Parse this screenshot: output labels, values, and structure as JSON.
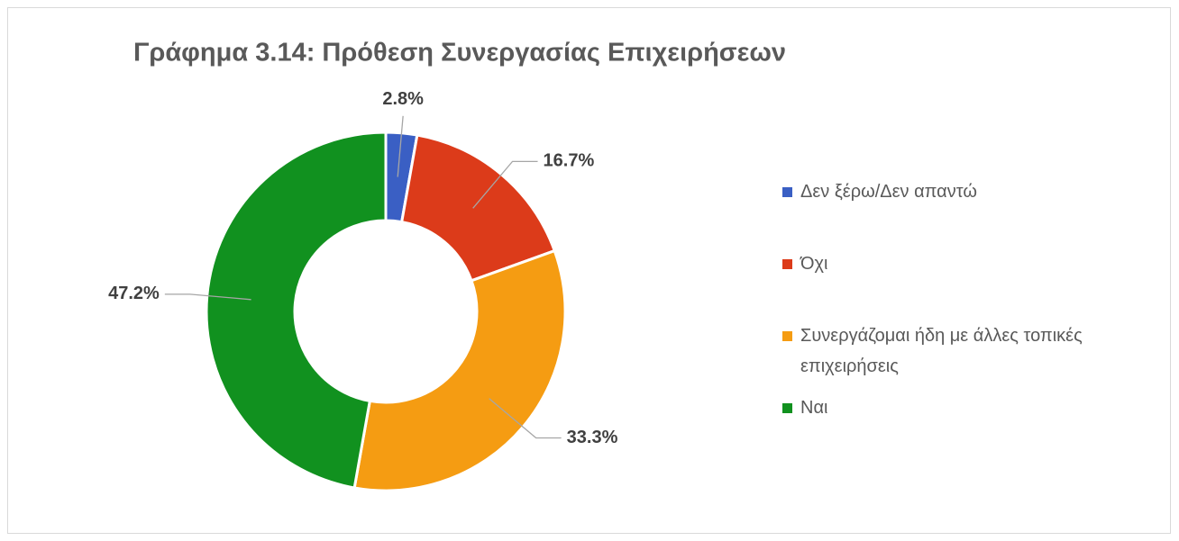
{
  "chart_data": {
    "type": "donut",
    "title": "Γράφημα 3.14: Πρόθεση Συνεργασίας Επιχειρήσεων",
    "categories": [
      "Δεν ξέρω/Δεν απαντώ",
      "Όχι",
      "Συνεργάζομαι ήδη με άλλες τοπικές επιχειρήσεις",
      "Ναι"
    ],
    "values": [
      2.8,
      16.7,
      33.3,
      47.2
    ],
    "value_labels": [
      "2.8%",
      "16.7%",
      "33.3%",
      "47.2%"
    ],
    "colors": [
      "#3a5fc4",
      "#dc3b1a",
      "#f59c12",
      "#11911f"
    ],
    "legend": "right"
  }
}
